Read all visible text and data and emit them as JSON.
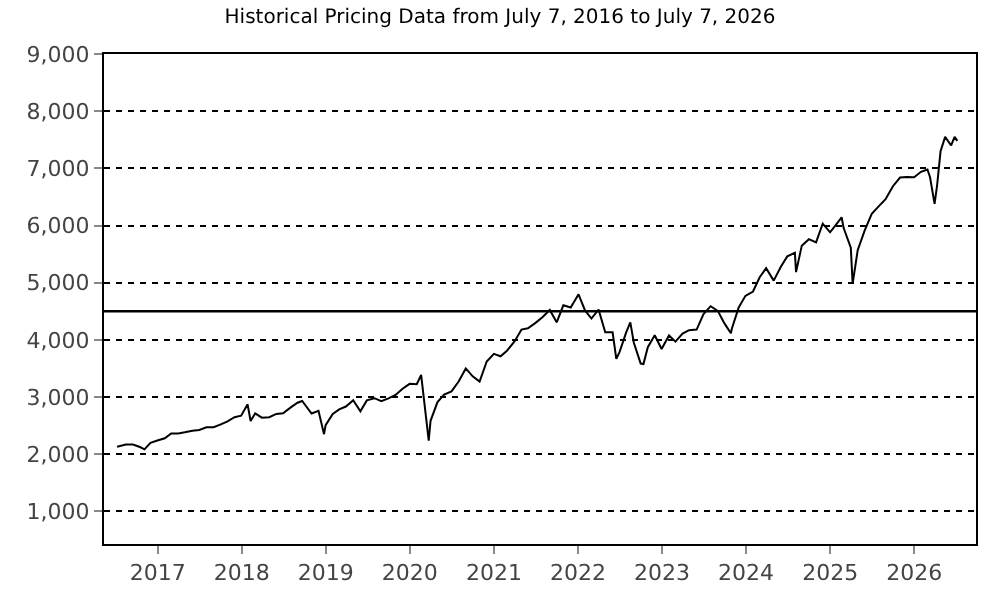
{
  "chart_data": {
    "type": "line",
    "title": "Historical Pricing Data from July 7, 2016 to July 7, 2026",
    "x": [
      "2016-07-08",
      "2016-08-15",
      "2016-09-15",
      "2016-10-15",
      "2016-11-04",
      "2016-11-30",
      "2016-12-30",
      "2017-01-31",
      "2017-02-28",
      "2017-03-31",
      "2017-04-28",
      "2017-05-31",
      "2017-06-30",
      "2017-07-31",
      "2017-08-31",
      "2017-09-29",
      "2017-10-31",
      "2017-11-30",
      "2017-12-29",
      "2018-01-26",
      "2018-02-08",
      "2018-02-28",
      "2018-03-29",
      "2018-04-30",
      "2018-05-31",
      "2018-06-29",
      "2018-07-31",
      "2018-08-31",
      "2018-09-20",
      "2018-10-31",
      "2018-11-30",
      "2018-12-24",
      "2018-12-31",
      "2019-01-31",
      "2019-02-28",
      "2019-03-29",
      "2019-04-30",
      "2019-05-31",
      "2019-06-28",
      "2019-07-31",
      "2019-08-30",
      "2019-09-30",
      "2019-10-31",
      "2019-11-29",
      "2019-12-31",
      "2020-01-31",
      "2020-02-19",
      "2020-03-23",
      "2020-03-31",
      "2020-04-30",
      "2020-05-29",
      "2020-06-30",
      "2020-07-31",
      "2020-08-31",
      "2020-09-30",
      "2020-10-30",
      "2020-11-30",
      "2020-12-31",
      "2021-01-29",
      "2021-02-26",
      "2021-03-31",
      "2021-04-30",
      "2021-05-28",
      "2021-06-30",
      "2021-07-30",
      "2021-08-31",
      "2021-09-30",
      "2021-10-29",
      "2021-11-30",
      "2022-01-03",
      "2022-01-31",
      "2022-02-28",
      "2022-03-31",
      "2022-04-29",
      "2022-05-31",
      "2022-06-16",
      "2022-06-30",
      "2022-07-29",
      "2022-08-16",
      "2022-08-31",
      "2022-09-30",
      "2022-10-12",
      "2022-10-31",
      "2022-11-30",
      "2022-12-30",
      "2023-01-31",
      "2023-02-28",
      "2023-03-31",
      "2023-04-28",
      "2023-05-31",
      "2023-06-30",
      "2023-07-31",
      "2023-08-31",
      "2023-09-29",
      "2023-10-27",
      "2023-10-31",
      "2023-11-30",
      "2023-12-29",
      "2024-01-31",
      "2024-02-29",
      "2024-03-28",
      "2024-04-30",
      "2024-05-31",
      "2024-06-28",
      "2024-07-31",
      "2024-08-05",
      "2024-08-30",
      "2024-09-30",
      "2024-10-31",
      "2024-11-29",
      "2024-12-31",
      "2025-01-31",
      "2025-02-19",
      "2025-02-28",
      "2025-03-31",
      "2025-04-08",
      "2025-04-30",
      "2025-05-30",
      "2025-06-30",
      "2025-07-31",
      "2025-08-29",
      "2025-09-30",
      "2025-10-31",
      "2025-11-28",
      "2025-12-31",
      "2026-01-30",
      "2026-02-27",
      "2026-03-10",
      "2026-03-30",
      "2026-04-10",
      "2026-04-25",
      "2026-05-15",
      "2026-06-10",
      "2026-06-25",
      "2026-07-07"
    ],
    "values": [
      2130,
      2170,
      2168,
      2126,
      2085,
      2199,
      2239,
      2279,
      2364,
      2363,
      2384,
      2412,
      2423,
      2470,
      2471,
      2519,
      2575,
      2648,
      2674,
      2873,
      2581,
      2714,
      2640,
      2648,
      2705,
      2718,
      2816,
      2901,
      2931,
      2712,
      2760,
      2351,
      2507,
      2704,
      2784,
      2834,
      2946,
      2752,
      2942,
      2980,
      2926,
      2977,
      3038,
      3141,
      3231,
      3226,
      3386,
      2237,
      2585,
      2912,
      3044,
      3100,
      3271,
      3500,
      3363,
      3270,
      3622,
      3756,
      3714,
      3811,
      3973,
      4181,
      4204,
      4298,
      4395,
      4523,
      4308,
      4605,
      4567,
      4797,
      4516,
      4374,
      4530,
      4132,
      4132,
      3667,
      3785,
      4130,
      4305,
      3955,
      3586,
      3577,
      3872,
      4080,
      3840,
      4077,
      3970,
      4109,
      4169,
      4180,
      4450,
      4589,
      4508,
      4288,
      4117,
      4194,
      4568,
      4770,
      4846,
      5096,
      5254,
      5036,
      5278,
      5460,
      5522,
      5186,
      5648,
      5762,
      5705,
      6032,
      5882,
      6041,
      6144,
      5955,
      5612,
      4983,
      5569,
      5912,
      6205,
      6339,
      6460,
      6688,
      6840,
      6850,
      6845,
      6940,
      6980,
      6850,
      6380,
      6700,
      7300,
      7550,
      7400,
      7550,
      7480
    ],
    "color": "#000000",
    "line_style": "solid",
    "marker": "none",
    "xlim": [
      "2016-05-12",
      "2026-09-26"
    ],
    "xticks": [
      {
        "value": "2017-01-01",
        "label": "2017"
      },
      {
        "value": "2018-01-01",
        "label": "2018"
      },
      {
        "value": "2019-01-01",
        "label": "2019"
      },
      {
        "value": "2020-01-01",
        "label": "2020"
      },
      {
        "value": "2021-01-01",
        "label": "2021"
      },
      {
        "value": "2022-01-01",
        "label": "2022"
      },
      {
        "value": "2023-01-01",
        "label": "2023"
      },
      {
        "value": "2024-01-01",
        "label": "2024"
      },
      {
        "value": "2025-01-01",
        "label": "2025"
      },
      {
        "value": "2026-01-01",
        "label": "2026"
      }
    ],
    "ylim": [
      430,
      9000
    ],
    "yticks": [
      {
        "value": 1000,
        "label": "1,000"
      },
      {
        "value": 2000,
        "label": "2,000"
      },
      {
        "value": 3000,
        "label": "3,000"
      },
      {
        "value": 4000,
        "label": "4,000"
      },
      {
        "value": 5000,
        "label": "5,000"
      },
      {
        "value": 6000,
        "label": "6,000"
      },
      {
        "value": 7000,
        "label": "7,000"
      },
      {
        "value": 8000,
        "label": "8,000"
      },
      {
        "value": 9000,
        "label": "9,000"
      }
    ],
    "grid": "y",
    "legend": false,
    "ref_lines": [
      {
        "axis": "y",
        "value": 4500,
        "label": null,
        "color": "#000000",
        "line_style": "solid"
      }
    ]
  }
}
